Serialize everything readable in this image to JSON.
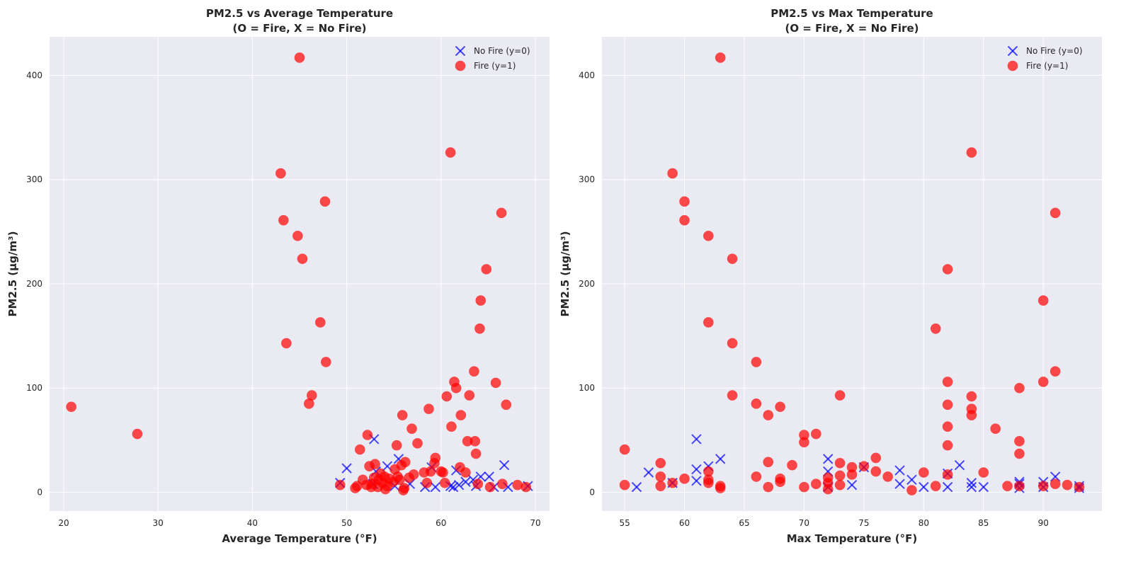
{
  "chart_data": [
    {
      "type": "scatter",
      "title_line1": "PM2.5 vs Average Temperature",
      "title_line2": "(O = Fire, X = No Fire)",
      "xlabel": "Average Temperature (°F)",
      "ylabel": "PM2.5 (µg/m³)",
      "xlim": [
        18.5,
        71.5
      ],
      "ylim": [
        -18,
        437
      ],
      "xticks": [
        20,
        30,
        40,
        50,
        60,
        70
      ],
      "yticks": [
        0,
        100,
        200,
        300,
        400
      ],
      "grid": true,
      "legend_position": "top-right",
      "series": [
        {
          "name": "No Fire (y=0)",
          "marker": "x",
          "color": "#0000ff",
          "points": [
            [
              49.3,
              9
            ],
            [
              50,
              23
            ],
            [
              52.8,
              8
            ],
            [
              52.9,
              51
            ],
            [
              53.1,
              20
            ],
            [
              54.3,
              25
            ],
            [
              55.1,
              6
            ],
            [
              55.5,
              32
            ],
            [
              56.7,
              8
            ],
            [
              58.3,
              5
            ],
            [
              59,
              24
            ],
            [
              59.4,
              5
            ],
            [
              61,
              6
            ],
            [
              61.3,
              5
            ],
            [
              61.6,
              21
            ],
            [
              61.9,
              7
            ],
            [
              62.6,
              10
            ],
            [
              63.4,
              12
            ],
            [
              63.7,
              6
            ],
            [
              64.2,
              15
            ],
            [
              65.1,
              15
            ],
            [
              65.6,
              5
            ],
            [
              66.7,
              26
            ],
            [
              67.1,
              5
            ],
            [
              69.2,
              6
            ]
          ]
        },
        {
          "name": "Fire (y=1)",
          "marker": "o",
          "color": "#ff0000",
          "points": [
            [
              20.8,
              82
            ],
            [
              27.8,
              56
            ],
            [
              43,
              306
            ],
            [
              43.3,
              261
            ],
            [
              43.6,
              143
            ],
            [
              44.8,
              246
            ],
            [
              45,
              417
            ],
            [
              45.3,
              224
            ],
            [
              46,
              85
            ],
            [
              46.3,
              93
            ],
            [
              47.2,
              163
            ],
            [
              47.7,
              279
            ],
            [
              47.8,
              125
            ],
            [
              49.3,
              7
            ],
            [
              50.9,
              4
            ],
            [
              51.1,
              6
            ],
            [
              51.4,
              41
            ],
            [
              51.7,
              12
            ],
            [
              52.1,
              7
            ],
            [
              52.2,
              55
            ],
            [
              52.4,
              25
            ],
            [
              52.6,
              5
            ],
            [
              52.7,
              8
            ],
            [
              52.9,
              14
            ],
            [
              53,
              27
            ],
            [
              53.3,
              5
            ],
            [
              53.4,
              12
            ],
            [
              53.6,
              18
            ],
            [
              53.8,
              9
            ],
            [
              54,
              15
            ],
            [
              54.1,
              3
            ],
            [
              54.3,
              6
            ],
            [
              54.5,
              13
            ],
            [
              54.9,
              10
            ],
            [
              55.1,
              22
            ],
            [
              55.3,
              45
            ],
            [
              55.4,
              15
            ],
            [
              55.6,
              12
            ],
            [
              55.8,
              26
            ],
            [
              55.9,
              74
            ],
            [
              56,
              2
            ],
            [
              56.1,
              4
            ],
            [
              56.2,
              29
            ],
            [
              56.6,
              14
            ],
            [
              56.9,
              61
            ],
            [
              57.1,
              17
            ],
            [
              57.5,
              47
            ],
            [
              58.2,
              19
            ],
            [
              58.5,
              9
            ],
            [
              58.7,
              80
            ],
            [
              58.9,
              20
            ],
            [
              59.3,
              28
            ],
            [
              59.4,
              33
            ],
            [
              60,
              20
            ],
            [
              60.2,
              19
            ],
            [
              60.4,
              9
            ],
            [
              60.6,
              92
            ],
            [
              61.1,
              63
            ],
            [
              61.4,
              106
            ],
            [
              61.6,
              100
            ],
            [
              62,
              24
            ],
            [
              62.1,
              74
            ],
            [
              62.6,
              19
            ],
            [
              62.8,
              49
            ],
            [
              63,
              93
            ],
            [
              63.5,
              116
            ],
            [
              63.6,
              49
            ],
            [
              63.7,
              37
            ],
            [
              63.9,
              8
            ],
            [
              64.1,
              157
            ],
            [
              64.2,
              184
            ],
            [
              64.8,
              214
            ],
            [
              65.2,
              5
            ],
            [
              65.8,
              105
            ],
            [
              66.4,
              268
            ],
            [
              66.5,
              8
            ],
            [
              66.9,
              84
            ],
            [
              68.1,
              7
            ],
            [
              69,
              5
            ],
            [
              61,
              326
            ]
          ]
        }
      ]
    },
    {
      "type": "scatter",
      "title_line1": "PM2.5 vs Max Temperature",
      "title_line2": "(O = Fire, X = No Fire)",
      "xlabel": "Max Temperature (°F)",
      "ylabel": "PM2.5 (µg/m³)",
      "xlim": [
        53.1,
        94.9
      ],
      "ylim": [
        -18,
        437
      ],
      "xticks": [
        55,
        60,
        65,
        70,
        75,
        80,
        85,
        90
      ],
      "yticks": [
        0,
        100,
        200,
        300,
        400
      ],
      "grid": true,
      "legend_position": "top-right",
      "series": [
        {
          "name": "No Fire (y=0)",
          "marker": "x",
          "color": "#0000ff",
          "points": [
            [
              56,
              5
            ],
            [
              57,
              19
            ],
            [
              59,
              9
            ],
            [
              61,
              51
            ],
            [
              61,
              11
            ],
            [
              61,
              22
            ],
            [
              62,
              25
            ],
            [
              63,
              32
            ],
            [
              72,
              32
            ],
            [
              72,
              20
            ],
            [
              72,
              5
            ],
            [
              74,
              7
            ],
            [
              75,
              24
            ],
            [
              78,
              21
            ],
            [
              78,
              8
            ],
            [
              79,
              12
            ],
            [
              80,
              5
            ],
            [
              82,
              5
            ],
            [
              82,
              18
            ],
            [
              83,
              26
            ],
            [
              84,
              5
            ],
            [
              84,
              9
            ],
            [
              85,
              5
            ],
            [
              88,
              4
            ],
            [
              88,
              8
            ],
            [
              88,
              10
            ],
            [
              90,
              10
            ],
            [
              90,
              5
            ],
            [
              91,
              15
            ],
            [
              93,
              4
            ],
            [
              93,
              6
            ]
          ]
        },
        {
          "name": "Fire (y=1)",
          "marker": "o",
          "color": "#ff0000",
          "points": [
            [
              55,
              41
            ],
            [
              55,
              7
            ],
            [
              58,
              28
            ],
            [
              58,
              15
            ],
            [
              58,
              6
            ],
            [
              59,
              306
            ],
            [
              59,
              9
            ],
            [
              60,
              13
            ],
            [
              60,
              261
            ],
            [
              60,
              279
            ],
            [
              62,
              246
            ],
            [
              62,
              163
            ],
            [
              62,
              20
            ],
            [
              62,
              12
            ],
            [
              62,
              9
            ],
            [
              63,
              417
            ],
            [
              63,
              4
            ],
            [
              63,
              6
            ],
            [
              64,
              224
            ],
            [
              64,
              143
            ],
            [
              64,
              93
            ],
            [
              66,
              125
            ],
            [
              66,
              85
            ],
            [
              66,
              15
            ],
            [
              67,
              74
            ],
            [
              67,
              29
            ],
            [
              67,
              5
            ],
            [
              68,
              82
            ],
            [
              68,
              13
            ],
            [
              68,
              10
            ],
            [
              69,
              26
            ],
            [
              70,
              55
            ],
            [
              70,
              48
            ],
            [
              70,
              5
            ],
            [
              71,
              56
            ],
            [
              71,
              8
            ],
            [
              72,
              14
            ],
            [
              72,
              3
            ],
            [
              72,
              9
            ],
            [
              73,
              93
            ],
            [
              73,
              28
            ],
            [
              73,
              16
            ],
            [
              73,
              7
            ],
            [
              74,
              24
            ],
            [
              74,
              17
            ],
            [
              75,
              25
            ],
            [
              76,
              33
            ],
            [
              76,
              20
            ],
            [
              77,
              15
            ],
            [
              79,
              2
            ],
            [
              80,
              19
            ],
            [
              81,
              157
            ],
            [
              81,
              6
            ],
            [
              82,
              214
            ],
            [
              82,
              106
            ],
            [
              82,
              84
            ],
            [
              82,
              63
            ],
            [
              82,
              45
            ],
            [
              82,
              17
            ],
            [
              84,
              326
            ],
            [
              84,
              92
            ],
            [
              84,
              80
            ],
            [
              84,
              74
            ],
            [
              85,
              19
            ],
            [
              86,
              61
            ],
            [
              87,
              6
            ],
            [
              88,
              100
            ],
            [
              88,
              49
            ],
            [
              88,
              37
            ],
            [
              88,
              6
            ],
            [
              90,
              184
            ],
            [
              90,
              106
            ],
            [
              90,
              6
            ],
            [
              91,
              268
            ],
            [
              91,
              116
            ],
            [
              91,
              8
            ],
            [
              92,
              7
            ],
            [
              93,
              5
            ]
          ]
        }
      ]
    }
  ]
}
